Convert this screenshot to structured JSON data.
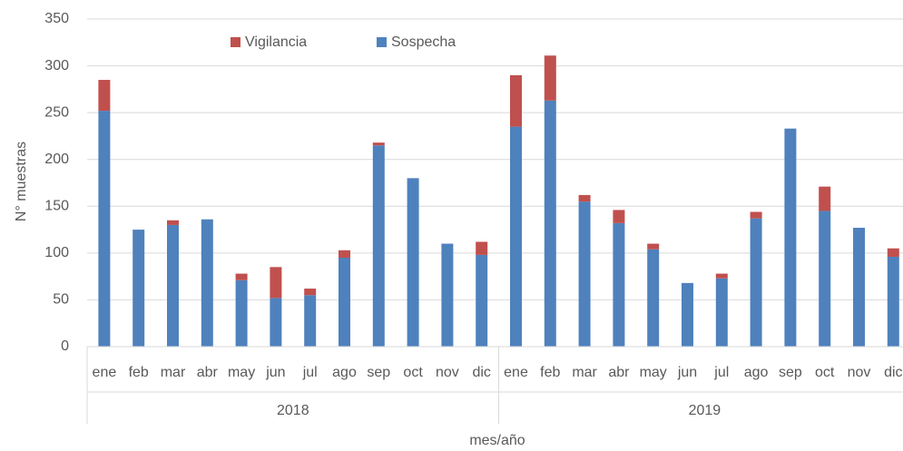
{
  "chart_data": {
    "type": "stacked_bar",
    "y_label": "N° muestras",
    "x_label": "mes/año",
    "categories": [
      "ene",
      "feb",
      "mar",
      "abr",
      "may",
      "jun",
      "jul",
      "ago",
      "sep",
      "oct",
      "nov",
      "dic",
      "ene",
      "feb",
      "mar",
      "abr",
      "may",
      "jun",
      "jul",
      "ago",
      "sep",
      "oct",
      "nov",
      "dic"
    ],
    "groups": [
      "2018",
      "2019"
    ],
    "series": [
      {
        "name": "Sospecha",
        "color": "#4f81bd",
        "values": [
          252,
          125,
          130,
          136,
          71,
          52,
          55,
          95,
          215,
          180,
          110,
          98,
          235,
          263,
          155,
          132,
          104,
          68,
          73,
          137,
          233,
          145,
          127,
          96
        ]
      },
      {
        "name": "Vigilancia",
        "color": "#c0504d",
        "values": [
          33,
          0,
          5,
          0,
          7,
          33,
          7,
          8,
          3,
          0,
          0,
          14,
          55,
          48,
          7,
          14,
          6,
          0,
          5,
          7,
          0,
          26,
          0,
          9
        ]
      }
    ],
    "ylim": [
      0,
      350
    ],
    "yticks": [
      0,
      50,
      100,
      150,
      200,
      250,
      300,
      350
    ],
    "grid": true
  }
}
